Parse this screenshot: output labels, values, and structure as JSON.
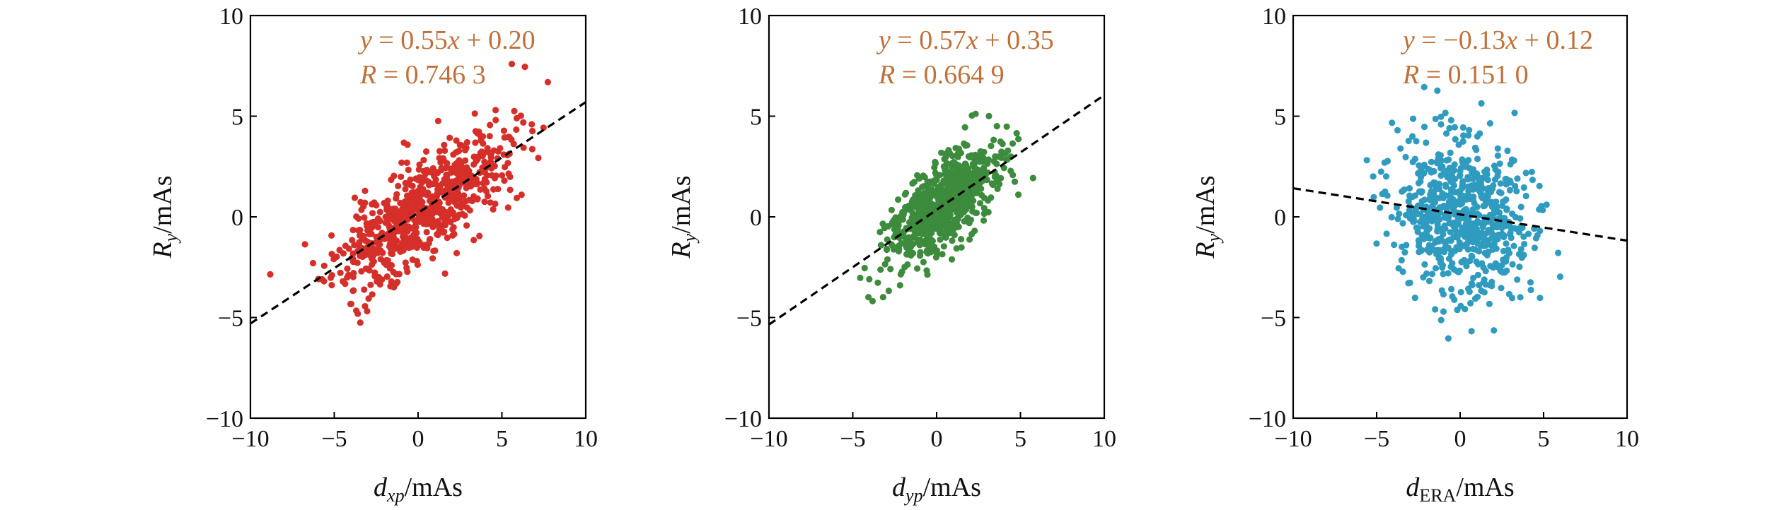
{
  "figure": {
    "panels_count": 3
  },
  "chart_data": [
    {
      "type": "scatter",
      "xlabel": {
        "base": "d",
        "sub": "xp",
        "unit": "/mAs"
      },
      "ylabel": {
        "base": "R",
        "sub": "y",
        "unit": "/mAs"
      },
      "xlim": [
        -10,
        10
      ],
      "ylim": [
        -10,
        10
      ],
      "xticks": [
        "−10",
        "−5",
        "0",
        "5",
        "10"
      ],
      "yticks": [
        "−10",
        "−5",
        "0",
        "5",
        "10"
      ],
      "grid": false,
      "point_color": "#d62f2a",
      "annotation_color": "#c0703a",
      "fit": {
        "slope": 0.55,
        "intercept": 0.2,
        "line_style": "dashed",
        "line_color": "#000000"
      },
      "annotation": {
        "equation": {
          "y": "y",
          "eq_rest": " = 0.55",
          "x": "x",
          "tail": " + 0.20"
        },
        "r": {
          "label": "R",
          "value": " = 0.746 3"
        }
      },
      "scatter": {
        "n": 700,
        "x_sd": 2.6,
        "x_mean": 0.2,
        "noise_sd": 1.25,
        "seed": 11,
        "x_range": [
          -9.0,
          9.3
        ]
      }
    },
    {
      "type": "scatter",
      "xlabel": {
        "base": "d",
        "sub": "yp",
        "unit": "/mAs"
      },
      "ylabel": {
        "base": "R",
        "sub": "y",
        "unit": "/mAs"
      },
      "xlim": [
        -10,
        10
      ],
      "ylim": [
        -10,
        10
      ],
      "xticks": [
        "−10",
        "−5",
        "0",
        "5",
        "10"
      ],
      "yticks": [
        "−10",
        "−5",
        "0",
        "5",
        "10"
      ],
      "grid": false,
      "point_color": "#3d8b3d",
      "annotation_color": "#c0703a",
      "fit": {
        "slope": 0.57,
        "intercept": 0.35,
        "line_style": "dashed",
        "line_color": "#000000"
      },
      "annotation": {
        "equation": {
          "y": "y",
          "eq_rest": " = 0.57",
          "x": "x",
          "tail": " + 0.35"
        },
        "r": {
          "label": "R",
          "value": " = 0.664 9"
        }
      },
      "scatter": {
        "n": 700,
        "x_sd": 1.6,
        "x_mean": 0.3,
        "noise_sd": 1.05,
        "seed": 23,
        "x_range": [
          -8.0,
          6.0
        ]
      }
    },
    {
      "type": "scatter",
      "xlabel": {
        "base": "d",
        "sub": "ERA",
        "unit": "/mAs"
      },
      "ylabel": {
        "base": "R",
        "sub": "y",
        "unit": "/mAs"
      },
      "xlim": [
        -10,
        10
      ],
      "ylim": [
        -10,
        10
      ],
      "xticks": [
        "−10",
        "−5",
        "0",
        "5",
        "10"
      ],
      "yticks": [
        "−10",
        "−5",
        "0",
        "5",
        "10"
      ],
      "grid": false,
      "point_color": "#2f9bbf",
      "annotation_color": "#c0703a",
      "fit": {
        "slope": -0.13,
        "intercept": 0.12,
        "line_style": "dashed",
        "line_color": "#000000"
      },
      "annotation": {
        "equation": {
          "y": "y",
          "eq_rest": " = −0.13",
          "x": "x",
          "tail": " + 0.12"
        },
        "r": {
          "label": "R",
          "value": " = 0.151 0"
        }
      },
      "scatter": {
        "n": 700,
        "x_sd": 2.0,
        "x_mean": 0.2,
        "noise_sd": 1.95,
        "seed": 37,
        "x_range": [
          -9.8,
          9.8
        ]
      }
    }
  ]
}
